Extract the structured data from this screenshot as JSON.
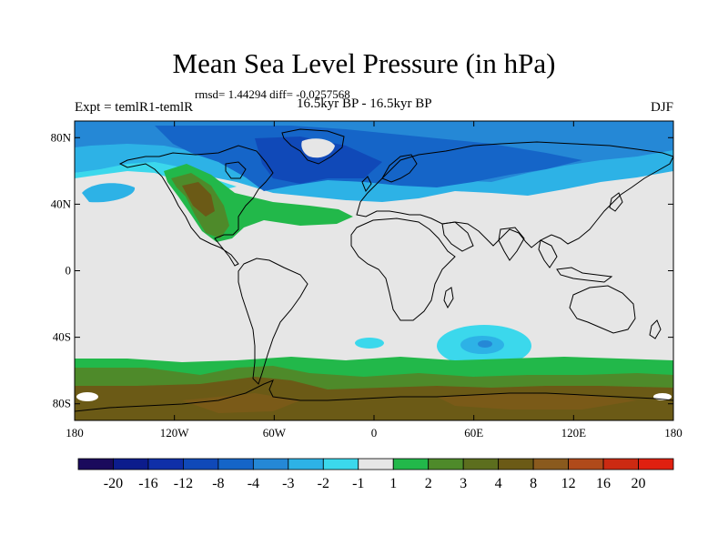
{
  "title": "Mean Sea Level Pressure (in hPa)",
  "stats": "rmsd= 1.44294 diff= -0.0257568",
  "expt": "Expt = temlR1-temlR",
  "period": "16.5kyr BP - 16.5kyr BP",
  "season": "DJF",
  "lat_labels": [
    "80N",
    "40N",
    "0",
    "40S",
    "80S"
  ],
  "lon_labels": [
    "180",
    "120W",
    "60W",
    "0",
    "60E",
    "120E",
    "180"
  ],
  "colorbar": {
    "colors": [
      "#1a0a5c",
      "#0c1c8c",
      "#0f2fa8",
      "#1049b8",
      "#1565c8",
      "#2588d6",
      "#2db2e6",
      "#3bd8ec",
      "#e6e6e6",
      "#22b84a",
      "#4e8a2a",
      "#5c6e1e",
      "#6b5a16",
      "#8a5a1e",
      "#b04a1a",
      "#cc2a12",
      "#e02010"
    ],
    "labels": [
      "-20",
      "-16",
      "-12",
      "-8",
      "-4",
      "-3",
      "-2",
      "-1",
      "1",
      "2",
      "3",
      "4",
      "8",
      "12",
      "16",
      "20"
    ]
  }
}
